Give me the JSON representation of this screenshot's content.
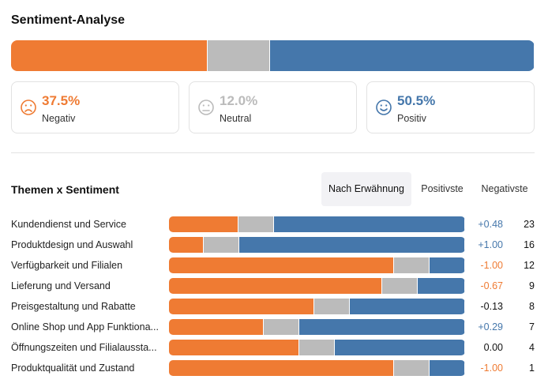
{
  "header": {
    "title": "Sentiment-Analyse"
  },
  "overall": {
    "segments": [
      {
        "name": "Negativ",
        "value": 37.5,
        "value_label": "37.5%",
        "color": "#ef7b33"
      },
      {
        "name": "Neutral",
        "value": 12.0,
        "value_label": "12.0%",
        "color": "#bbbbbb"
      },
      {
        "name": "Positiv",
        "value": 50.5,
        "value_label": "50.5%",
        "color": "#4577ab"
      }
    ]
  },
  "themes": {
    "title": "Themen x Sentiment",
    "tabs": [
      "Nach Erwähnung",
      "Positivste",
      "Negativste"
    ],
    "active_tab": 0,
    "rows": [
      {
        "name": "Kundendienst und Service",
        "values": [
          23.5,
          12,
          64.5
        ],
        "score": 0.48,
        "score_label": "+0.48",
        "score_color": "#4577ab",
        "count": 23
      },
      {
        "name": "Produktdesign und Auswahl",
        "values": [
          11.7,
          12,
          76.3
        ],
        "score": 1.0,
        "score_label": "+1.00",
        "score_color": "#4577ab",
        "count": 16
      },
      {
        "name": "Verfügbarkeit und Filialen",
        "values": [
          76,
          12,
          12
        ],
        "score": -1.0,
        "score_label": "-1.00",
        "score_color": "#ef7b33",
        "count": 12
      },
      {
        "name": "Lieferung und Versand",
        "values": [
          72,
          12,
          16
        ],
        "score": -0.67,
        "score_label": "-0.67",
        "score_color": "#ef7b33",
        "count": 9
      },
      {
        "name": "Preisgestaltung und Rabatte",
        "values": [
          49,
          12,
          39
        ],
        "score": -0.13,
        "score_label": "-0.13",
        "score_color": "#111111",
        "count": 8
      },
      {
        "name": "Online Shop und App Funktiona...",
        "values": [
          32,
          12,
          56
        ],
        "score": 0.29,
        "score_label": "+0.29",
        "score_color": "#4577ab",
        "count": 7
      },
      {
        "name": "Öffnungszeiten und Filialaussta...",
        "values": [
          44,
          12,
          44
        ],
        "score": 0.0,
        "score_label": "0.00",
        "score_color": "#111111",
        "count": 4
      },
      {
        "name": "Produktqualität und Zustand",
        "values": [
          76,
          12,
          12
        ],
        "score": -1.0,
        "score_label": "-1.00",
        "score_color": "#ef7b33",
        "count": 1
      }
    ]
  }
}
